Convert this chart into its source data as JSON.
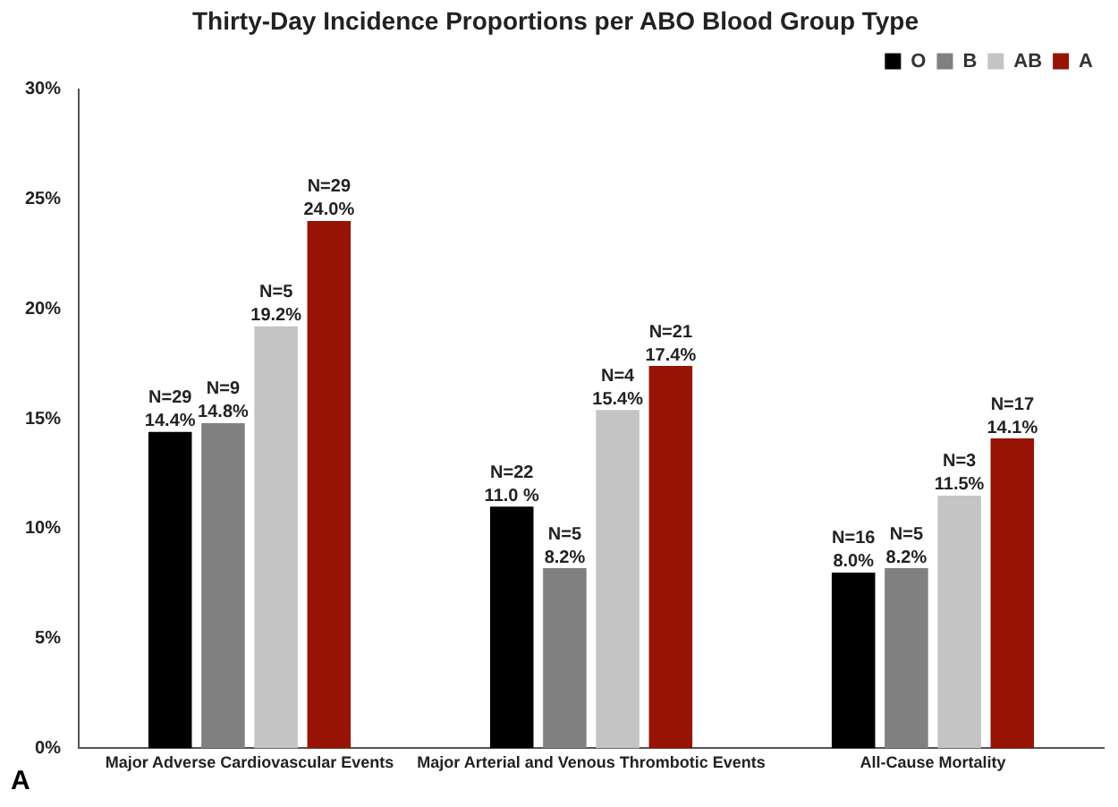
{
  "chart_data": {
    "type": "bar",
    "title": "Thirty-Day Incidence Proportions per ABO Blood Group Type",
    "categories": [
      "Major Adverse Cardiovascular Events",
      "Major Arterial and Venous Thrombotic Events",
      "All-Cause Mortality"
    ],
    "series": [
      {
        "name": "O",
        "color": "#000000",
        "values": [
          14.4,
          11.0,
          8.0
        ],
        "value_labels": [
          "N=29\n14.4%",
          "N=22\n11.0 %",
          "N=16\n8.0%"
        ]
      },
      {
        "name": "B",
        "color": "#808080",
        "values": [
          14.8,
          8.2,
          8.2
        ],
        "value_labels": [
          "N=9\n14.8%",
          "N=5\n8.2%",
          "N=5\n8.2%"
        ]
      },
      {
        "name": "AB",
        "color": "#c4c4c4",
        "values": [
          19.2,
          15.4,
          11.5
        ],
        "value_labels": [
          "N=5\n19.2%",
          "N=4\n15.4%",
          "N=3\n11.5%"
        ]
      },
      {
        "name": "A",
        "color": "#971306",
        "values": [
          24.0,
          17.4,
          14.1
        ],
        "value_labels": [
          "N=29\n24.0%",
          "N=21\n17.4%",
          "N=17\n14.1%"
        ]
      }
    ],
    "ylim": [
      0,
      30
    ],
    "yticks": [
      {
        "value": 0,
        "label": "0%"
      },
      {
        "value": 5,
        "label": "5%"
      },
      {
        "value": 10,
        "label": "10%"
      },
      {
        "value": 15,
        "label": "15%"
      },
      {
        "value": 20,
        "label": "20%"
      },
      {
        "value": 25,
        "label": "25%"
      },
      {
        "value": 30,
        "label": "30%"
      }
    ],
    "grid": false,
    "legend": "top right",
    "annotations": [
      "A"
    ]
  }
}
